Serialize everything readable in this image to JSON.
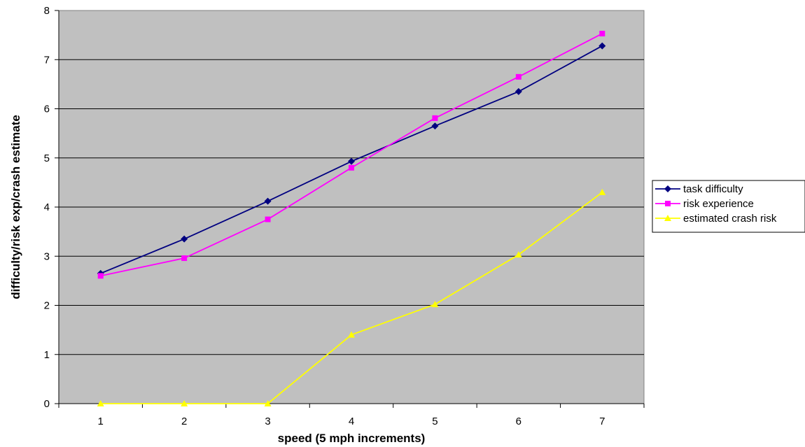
{
  "chart_data": {
    "type": "line",
    "title": "",
    "xlabel": "speed (5 mph increments)",
    "ylabel": "difficulty/risk exp/crash estimate",
    "categories": [
      "1",
      "2",
      "3",
      "4",
      "5",
      "6",
      "7"
    ],
    "ylim": [
      0,
      8
    ],
    "yticks": [
      "0",
      "1",
      "2",
      "3",
      "4",
      "5",
      "6",
      "7",
      "8"
    ],
    "grid": "horizontal",
    "plot_background": "#c0c0c0",
    "legend_position": "right",
    "series": [
      {
        "name": "task difficulty",
        "color": "#000080",
        "marker": "diamond",
        "values": [
          2.65,
          3.35,
          4.12,
          4.93,
          5.65,
          6.35,
          7.28
        ]
      },
      {
        "name": "risk experience",
        "color": "#ff00ff",
        "marker": "square",
        "values": [
          2.6,
          2.96,
          3.75,
          4.8,
          5.81,
          6.65,
          7.53
        ]
      },
      {
        "name": "estimated crash risk",
        "color": "#ffff00",
        "marker": "triangle",
        "values": [
          0,
          0,
          0,
          1.4,
          2.02,
          3.03,
          4.3
        ]
      }
    ]
  }
}
